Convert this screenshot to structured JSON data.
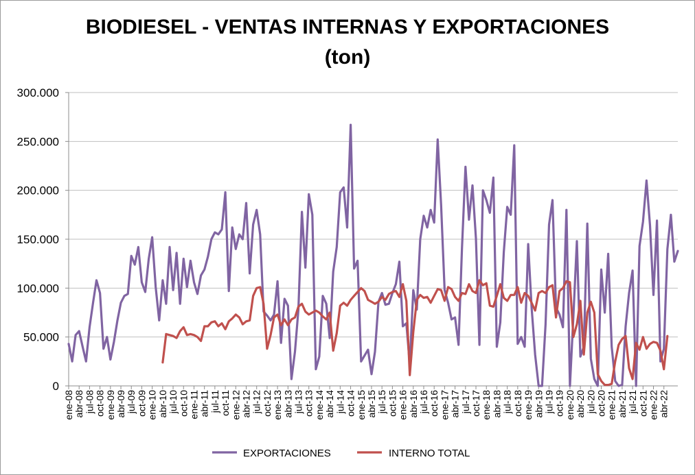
{
  "chart_data": {
    "type": "line",
    "title": "BIODIESEL - VENTAS INTERNAS Y EXPORTACIONES",
    "subtitle": "(ton)",
    "xlabel": "",
    "ylabel": "",
    "ylim": [
      0,
      300000
    ],
    "y_ticks": [
      "0",
      "50.000",
      "100.000",
      "150.000",
      "200.000",
      "250.000",
      "300.000"
    ],
    "y_tick_values": [
      0,
      50000,
      100000,
      150000,
      200000,
      250000,
      300000
    ],
    "x_tick_labels": [
      "ene-08",
      "abr-08",
      "jul-08",
      "oct-08",
      "ene-09",
      "abr-09",
      "jul-09",
      "oct-09",
      "ene-10",
      "abr-10",
      "jul-10",
      "oct-10",
      "ene-11",
      "abr-11",
      "jul-11",
      "oct-11",
      "ene-12",
      "abr-12",
      "jul-12",
      "oct-12",
      "ene-13",
      "abr-13",
      "jul-13",
      "oct-13",
      "ene-14",
      "abr-14",
      "jul-14",
      "oct-14",
      "ene-15",
      "abr-15",
      "jul-15",
      "oct-15",
      "ene-16",
      "abr-16",
      "jul-16",
      "oct-16",
      "ene-17",
      "abr-17",
      "jul-17",
      "oct-17",
      "ene-18",
      "abr-18",
      "jul-18",
      "oct-18",
      "ene-19",
      "abr-19",
      "jul-19",
      "oct-19",
      "ene-20",
      "abr-20",
      "jul-20",
      "oct-20",
      "ene-21",
      "abr-21",
      "jul-21",
      "oct-21",
      "ene-22",
      "abr-22"
    ],
    "x_start": "ene-08",
    "x_end": "abr-22",
    "grid": true,
    "legend_position": "bottom",
    "series": [
      {
        "name": "EXPORTACIONES",
        "color": "#8064a2",
        "values": [
          43000,
          25000,
          52000,
          56000,
          40000,
          25000,
          60000,
          85000,
          108000,
          95000,
          38000,
          50000,
          27000,
          45000,
          67000,
          85000,
          92000,
          94000,
          133000,
          124000,
          142000,
          106000,
          96000,
          130000,
          152000,
          101000,
          67000,
          108000,
          84000,
          142000,
          98000,
          136000,
          84000,
          130000,
          101000,
          128000,
          106000,
          94000,
          113000,
          119000,
          132000,
          150000,
          157000,
          155000,
          160000,
          198000,
          97000,
          162000,
          140000,
          155000,
          150000,
          187000,
          115000,
          165000,
          180000,
          155000,
          76000,
          72000,
          67000,
          73000,
          107000,
          44000,
          89000,
          82000,
          7000,
          35000,
          78000,
          178000,
          121000,
          196000,
          175000,
          17000,
          30000,
          92000,
          84000,
          49000,
          117000,
          142000,
          198000,
          203000,
          162000,
          267000,
          120000,
          128000,
          25000,
          31000,
          37000,
          12000,
          35000,
          86000,
          95000,
          83000,
          84000,
          95000,
          104000,
          127000,
          61000,
          64000,
          22000,
          98000,
          78000,
          150000,
          174000,
          162000,
          180000,
          167000,
          252000,
          185000,
          98000,
          85000,
          68000,
          70000,
          42000,
          141000,
          224000,
          170000,
          205000,
          151000,
          42000,
          200000,
          190000,
          177000,
          213000,
          40000,
          65000,
          137000,
          183000,
          175000,
          246000,
          43000,
          50000,
          40000,
          145000,
          80000,
          32000,
          0,
          0,
          63000,
          165000,
          190000,
          80000,
          73000,
          60000,
          180000,
          0,
          71000,
          148000,
          30000,
          40000,
          166000,
          28000,
          7000,
          0,
          119000,
          75000,
          135000,
          40000,
          5000,
          0,
          1000,
          61000,
          95000,
          118000,
          0,
          143000,
          168000,
          210000,
          164000,
          93000,
          169000,
          25000,
          38000,
          140000,
          175000,
          127000,
          138000
        ]
      },
      {
        "name": "INTERNO TOTAL",
        "color": "#c0504d",
        "start_index": 27,
        "values": [
          24000,
          53000,
          52000,
          51000,
          49000,
          56000,
          60000,
          52000,
          53000,
          52000,
          50000,
          46000,
          61000,
          61000,
          65000,
          66000,
          61000,
          64000,
          58000,
          66000,
          69000,
          73000,
          70000,
          63000,
          66000,
          67000,
          92000,
          100000,
          101000,
          84000,
          38000,
          52000,
          70000,
          73000,
          62000,
          68000,
          62000,
          68000,
          70000,
          81000,
          84000,
          76000,
          73000,
          75000,
          77000,
          75000,
          71000,
          68000,
          75000,
          36000,
          54000,
          82000,
          85000,
          82000,
          88000,
          92000,
          96000,
          100000,
          97000,
          88000,
          86000,
          84000,
          86000,
          91000,
          88000,
          94000,
          96000,
          97000,
          91000,
          104000,
          87000,
          11000,
          55000,
          88000,
          93000,
          90000,
          91000,
          85000,
          92000,
          99000,
          98000,
          87000,
          101000,
          99000,
          91000,
          87000,
          95000,
          94000,
          104000,
          97000,
          95000,
          108000,
          103000,
          105000,
          82000,
          81000,
          92000,
          104000,
          90000,
          87000,
          93000,
          93000,
          101000,
          85000,
          95000,
          92000,
          85000,
          77000,
          95000,
          97000,
          95000,
          101000,
          103000,
          70000,
          97000,
          100000,
          107000,
          106000,
          50000,
          63000,
          87000,
          32000,
          75000,
          86000,
          75000,
          12000,
          5000,
          1000,
          1000,
          2000,
          25000,
          42000,
          48000,
          51000,
          18000,
          7000,
          44000,
          37000,
          50000,
          38000,
          43000,
          45000,
          44000,
          36000,
          17000,
          51000
        ]
      }
    ]
  }
}
